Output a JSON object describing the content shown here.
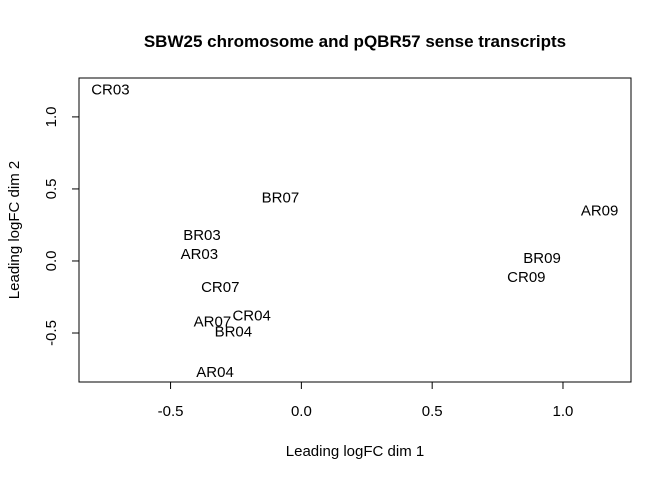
{
  "chart_data": {
    "type": "scatter",
    "title": "SBW25 chromosome and pQBR57 sense transcripts",
    "xlabel": "Leading logFC dim 1",
    "ylabel": "Leading logFC dim 2",
    "xlim": [
      -0.85,
      1.26
    ],
    "ylim": [
      -0.84,
      1.27
    ],
    "xticks": [
      -0.5,
      0.0,
      0.5,
      1.0
    ],
    "xtick_labels": [
      "-0.5",
      "0.0",
      "0.5",
      "1.0"
    ],
    "yticks": [
      -0.5,
      0.0,
      0.5,
      1.0
    ],
    "ytick_labels": [
      "-0.5",
      "0.0",
      "0.5",
      "1.0"
    ],
    "grid": false,
    "points": [
      {
        "label": "CR03",
        "x": -0.73,
        "y": 1.19
      },
      {
        "label": "BR07",
        "x": -0.08,
        "y": 0.44
      },
      {
        "label": "AR09",
        "x": 1.14,
        "y": 0.35
      },
      {
        "label": "BR03",
        "x": -0.38,
        "y": 0.18
      },
      {
        "label": "AR03",
        "x": -0.39,
        "y": 0.05
      },
      {
        "label": "BR09",
        "x": 0.92,
        "y": 0.02
      },
      {
        "label": "CR09",
        "x": 0.86,
        "y": -0.11
      },
      {
        "label": "CR07",
        "x": -0.31,
        "y": -0.18
      },
      {
        "label": "CR04",
        "x": -0.19,
        "y": -0.38
      },
      {
        "label": "AR07",
        "x": -0.34,
        "y": -0.42
      },
      {
        "label": "BR04",
        "x": -0.26,
        "y": -0.49
      },
      {
        "label": "AR04",
        "x": -0.33,
        "y": -0.77
      }
    ]
  }
}
